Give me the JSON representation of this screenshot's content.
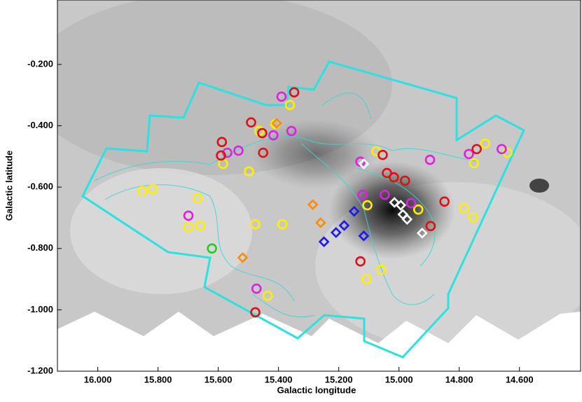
{
  "chart_data": {
    "type": "scatter",
    "x_label": "Galactic longitude",
    "y_label": "Galactic latitude",
    "xlim": [
      16.134,
      14.397
    ],
    "ylim": [
      -1.2,
      0.01
    ],
    "xticks": [
      {
        "value": 16.0,
        "label": "16.000"
      },
      {
        "value": 15.8,
        "label": "15.800"
      },
      {
        "value": 15.6,
        "label": "15.600"
      },
      {
        "value": 15.4,
        "label": "15.400"
      },
      {
        "value": 15.2,
        "label": "15.200"
      },
      {
        "value": 15.0,
        "label": "15.000"
      },
      {
        "value": 14.8,
        "label": "14.800"
      },
      {
        "value": 14.6,
        "label": "14.600"
      }
    ],
    "yticks": [
      {
        "value": -0.2,
        "label": "-0.200"
      },
      {
        "value": -0.4,
        "label": "-0.400"
      },
      {
        "value": -0.6,
        "label": "-0.600"
      },
      {
        "value": -0.8,
        "label": "-0.800"
      },
      {
        "value": -1.0,
        "label": "-1.000"
      },
      {
        "value": -1.2,
        "label": "-1.200"
      }
    ],
    "series": [
      {
        "color": "#ffee00",
        "marker": "circle",
        "x": [
          15.852,
          15.817,
          15.669,
          15.699,
          15.66,
          15.584,
          15.498,
          15.464,
          15.41,
          15.477,
          15.387,
          15.436,
          15.362,
          15.075,
          15.105,
          15.108,
          15.059,
          14.936,
          14.784,
          14.754,
          14.714,
          14.751,
          14.64
        ],
        "values": [
          -0.613,
          -0.606,
          -0.636,
          -0.73,
          -0.725,
          -0.524,
          -0.549,
          -0.417,
          -0.394,
          -0.721,
          -0.721,
          -0.954,
          -0.332,
          -0.483,
          -0.659,
          -0.899,
          -0.869,
          -0.673,
          -0.668,
          -0.698,
          -0.458,
          -0.522,
          -0.488
        ]
      },
      {
        "color": "#e020e0",
        "marker": "circle",
        "x": [
          15.699,
          15.57,
          15.533,
          15.417,
          15.357,
          15.39,
          15.128,
          15.121,
          15.047,
          14.897,
          14.768,
          14.659,
          15.473,
          14.96
        ],
        "values": [
          -0.693,
          -0.488,
          -0.481,
          -0.431,
          -0.417,
          -0.305,
          -0.517,
          -0.625,
          -0.625,
          -0.511,
          -0.492,
          -0.476,
          -0.931,
          -0.652
        ]
      },
      {
        "color": "#dd1111",
        "marker": "circle",
        "x": [
          15.348,
          15.588,
          15.454,
          15.451,
          15.491,
          15.591,
          15.477,
          15.128,
          15.054,
          15.017,
          15.04,
          14.98,
          14.895,
          14.849,
          14.742
        ],
        "values": [
          -0.291,
          -0.453,
          -0.424,
          -0.488,
          -0.389,
          -0.497,
          -1.008,
          -0.842,
          -0.495,
          -0.568,
          -0.554,
          -0.579,
          -0.727,
          -0.647,
          -0.476
        ]
      },
      {
        "color": "#22cc22",
        "marker": "circle",
        "x": [
          15.621
        ],
        "values": [
          -0.8
        ]
      },
      {
        "color": "#ff8c00",
        "marker": "diamond",
        "x": [
          15.406,
          15.286,
          15.26,
          15.519
        ],
        "values": [
          -0.392,
          -0.657,
          -0.716,
          -0.83
        ]
      },
      {
        "color": "#1a1aee",
        "marker": "diamond",
        "x": [
          15.249,
          15.209,
          15.182,
          15.149,
          15.117
        ],
        "values": [
          -0.778,
          -0.748,
          -0.725,
          -0.679,
          -0.759
        ]
      },
      {
        "color": "#ffffff",
        "marker": "diamond",
        "x": [
          15.117,
          15.015,
          14.987,
          14.923,
          14.994,
          14.973
        ],
        "values": [
          -0.524,
          -0.65,
          -0.689,
          -0.75,
          -0.659,
          -0.705
        ]
      }
    ]
  }
}
